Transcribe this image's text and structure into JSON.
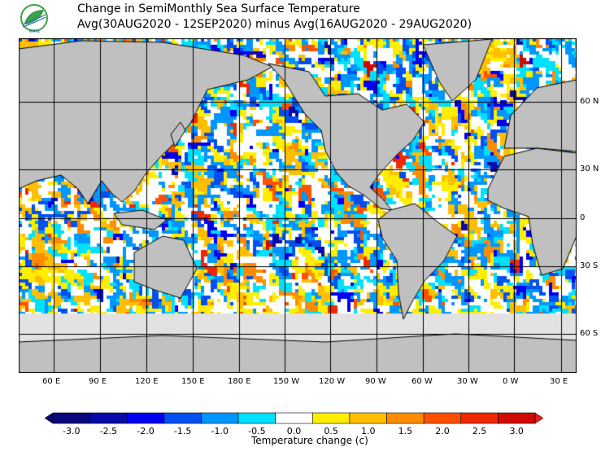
{
  "header": {
    "title": "Change in SemiMonthly Sea Surface Temperature",
    "subtitle": "Avg(30AUG2020 - 12SEP2020) minus Avg(16AUG2020 - 29AUG2020)",
    "logo_text": "สสน"
  },
  "map": {
    "type": "global sea surface temperature change map",
    "lon_labels": [
      "60 E",
      "90 E",
      "120 E",
      "150 E",
      "180 E",
      "150 W",
      "120 W",
      "90 W",
      "60 W",
      "30 W",
      "0 W",
      "30 E"
    ],
    "lat_labels": [
      "60 N",
      "30 N",
      "0",
      "30 S",
      "60 S"
    ],
    "land_color": "#c0c0c0",
    "ice_color": "#e2e2e2"
  },
  "colorbar": {
    "labels": [
      "-3.0",
      "-2.5",
      "-2.0",
      "-1.5",
      "-1.0",
      "-0.5",
      "0.0",
      "0.5",
      "1.0",
      "1.5",
      "2.0",
      "2.5",
      "3.0"
    ],
    "colors": [
      "#08087a",
      "#0a0aa8",
      "#0000f0",
      "#0050f0",
      "#0096ff",
      "#00e0ff",
      "#ffffff",
      "#ffee00",
      "#ffbf00",
      "#ff8c00",
      "#ff5000",
      "#f02800",
      "#d00a00"
    ],
    "title": "Temperature change  (c)"
  }
}
